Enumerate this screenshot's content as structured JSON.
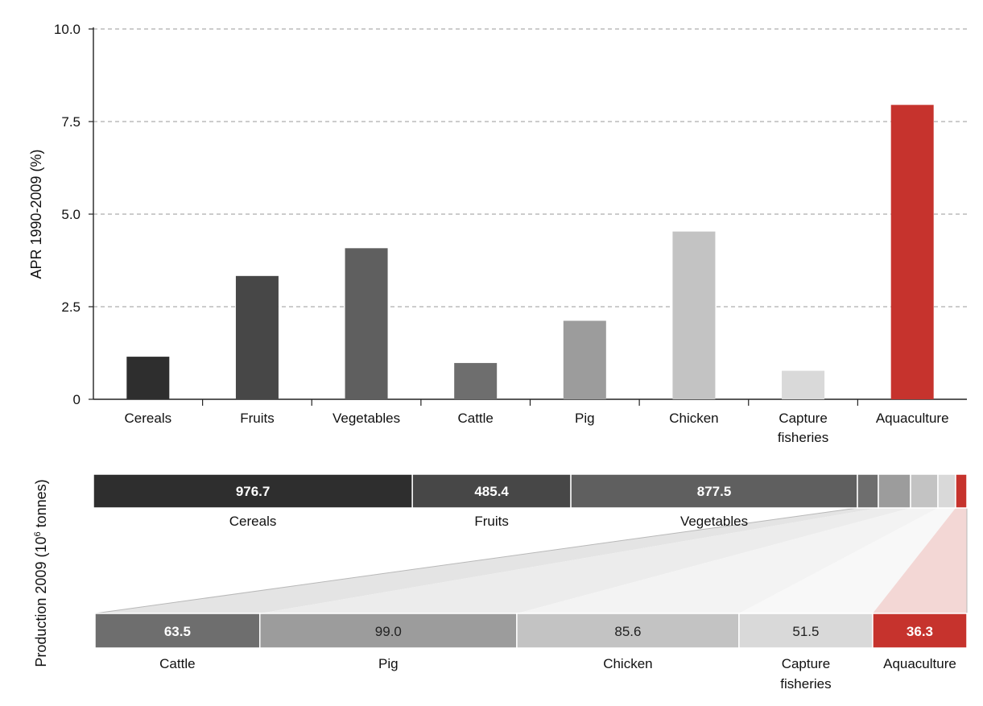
{
  "chart_data": [
    {
      "type": "bar",
      "ylabel": "APR 1990-2009 (%)",
      "ylim": [
        0,
        10
      ],
      "yticks": [
        "0",
        "2.5",
        "5.0",
        "7.5",
        "10.0"
      ],
      "ytick_values": [
        0,
        2.5,
        5,
        7.5,
        10
      ],
      "grid": true,
      "categories": [
        "Cereals",
        "Fruits",
        "Vegetables",
        "Cattle",
        "Pig",
        "Chicken",
        "Capture fisheries",
        "Aquaculture"
      ],
      "values": [
        1.15,
        3.33,
        4.08,
        0.98,
        2.12,
        4.53,
        0.77,
        7.95
      ],
      "colors": [
        "#2e2e2e",
        "#474747",
        "#5f5f5f",
        "#6e6e6e",
        "#9c9c9c",
        "#c3c3c3",
        "#d9d9d9",
        "#c6332d"
      ]
    },
    {
      "type": "bar",
      "subtype": "stacked-horizontal-with-expansion",
      "ylabel_prefix": "Production 2009 (10",
      "ylabel_sup": "6",
      "ylabel_suffix": " tonnes)",
      "top_bar": {
        "categories": [
          "Cereals",
          "Fruits",
          "Vegetables",
          "Cattle",
          "Pig",
          "Chicken",
          "Capture fisheries",
          "Aquaculture"
        ],
        "values": [
          976.7,
          485.4,
          877.5,
          63.5,
          99.0,
          85.6,
          51.5,
          36.3
        ],
        "value_labels": [
          "976.7",
          "485.4",
          "877.5",
          "",
          "",
          "",
          "",
          ""
        ],
        "category_labels": [
          "Cereals",
          "Fruits",
          "Vegetables",
          "",
          "",
          "",
          "",
          ""
        ]
      },
      "bottom_bar": {
        "categories": [
          "Cattle",
          "Pig",
          "Chicken",
          "Capture fisheries",
          "Aquaculture"
        ],
        "values": [
          63.5,
          99.0,
          85.6,
          51.5,
          36.3
        ],
        "value_labels": [
          "63.5",
          "99.0",
          "85.6",
          "51.5",
          "36.3"
        ],
        "category_labels": [
          [
            "Cattle"
          ],
          [
            "Pig"
          ],
          [
            "Chicken"
          ],
          [
            "Capture",
            "fisheries"
          ],
          [
            "Aquaculture"
          ]
        ]
      }
    }
  ]
}
